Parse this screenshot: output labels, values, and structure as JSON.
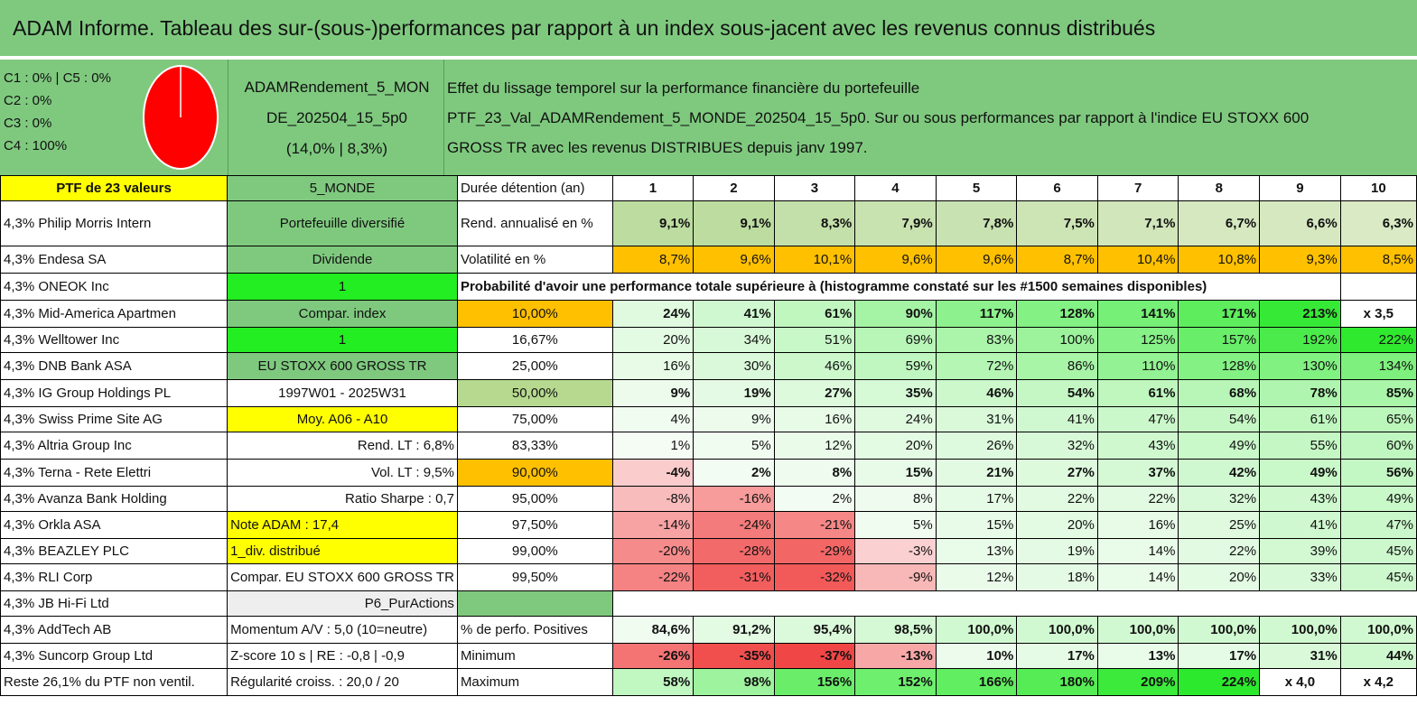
{
  "title": "ADAM Informe. Tableau des sur-(sous-)performances par rapport à un index sous-jacent avec les revenus connus distribués",
  "legend": [
    "C1 : 0% | C5 : 0%",
    "C2 : 0%",
    "C3 : 0%",
    "C4 : 100%"
  ],
  "pie_color": "#ff0000",
  "fund": [
    "ADAMRendement_5_MON",
    "DE_202504_15_5p0",
    "(14,0% | 8,3%)"
  ],
  "description": [
    "Effet du lissage temporel sur la performance financière du portefeuille",
    "PTF_23_Val_ADAMRendement_5_MONDE_202504_15_5p0. Sur ou sous performances par rapport à l'indice EU STOXX 600",
    "GROSS TR avec les revenus DISTRIBUES depuis janv 1997."
  ],
  "colors": {
    "green_header": "#7fc97f",
    "highlight_yellow": "#ffff00",
    "highlight_orange": "#ffc000",
    "bright_green": "#22ee22",
    "negative_red": "#f06060"
  },
  "rows": [
    {
      "c1": "PTF de 23 valeurs",
      "c2": "5_MONDE",
      "c3": "Durée détention (an)",
      "vals": [
        "1",
        "2",
        "3",
        "4",
        "5",
        "6",
        "7",
        "8",
        "9",
        "10"
      ]
    },
    {
      "c1": "4,3% Philip Morris Intern",
      "c2": "Portefeuille diversifié",
      "c3": "Rend. annualisé en %",
      "vals": [
        "9,1%",
        "9,1%",
        "8,3%",
        "7,9%",
        "7,8%",
        "7,5%",
        "7,1%",
        "6,7%",
        "6,6%",
        "6,3%"
      ]
    },
    {
      "c1": "4,3% Endesa SA",
      "c2": "Dividende",
      "c3": "Volatilité en %",
      "vals": [
        "8,7%",
        "9,6%",
        "10,1%",
        "9,6%",
        "9,6%",
        "8,7%",
        "10,4%",
        "10,8%",
        "9,3%",
        "8,5%"
      ]
    },
    {
      "c1": "4,3% ONEOK Inc",
      "c2": "1",
      "c3": "Probabilité d'avoir une performance totale supérieure à (histogramme constaté sur les #1500 semaines disponibles)",
      "vals": []
    },
    {
      "c1": "4,3% Mid-America Apartmen",
      "c2": "Compar. index",
      "c3": "10,00%",
      "vals": [
        "24%",
        "41%",
        "61%",
        "90%",
        "117%",
        "128%",
        "141%",
        "171%",
        "213%",
        "x 3,5"
      ]
    },
    {
      "c1": "4,3% Welltower Inc",
      "c2": "1",
      "c3": "16,67%",
      "vals": [
        "20%",
        "34%",
        "51%",
        "69%",
        "83%",
        "100%",
        "125%",
        "157%",
        "192%",
        "222%"
      ]
    },
    {
      "c1": "4,3% DNB Bank ASA",
      "c2": "EU STOXX 600 GROSS TR",
      "c3": "25,00%",
      "vals": [
        "16%",
        "30%",
        "46%",
        "59%",
        "72%",
        "86%",
        "110%",
        "128%",
        "130%",
        "134%"
      ]
    },
    {
      "c1": "4,3% IG Group Holdings PL",
      "c2": "1997W01 - 2025W31",
      "c3": "50,00%",
      "vals": [
        "9%",
        "19%",
        "27%",
        "35%",
        "46%",
        "54%",
        "61%",
        "68%",
        "78%",
        "85%"
      ]
    },
    {
      "c1": "4,3% Swiss Prime Site AG",
      "c2": "Moy. A06 - A10",
      "c3": "75,00%",
      "vals": [
        "4%",
        "9%",
        "16%",
        "24%",
        "31%",
        "41%",
        "47%",
        "54%",
        "61%",
        "65%"
      ]
    },
    {
      "c1": "4,3% Altria Group Inc",
      "c2": "Rend. LT : 6,8%",
      "c3": "83,33%",
      "vals": [
        "1%",
        "5%",
        "12%",
        "20%",
        "26%",
        "32%",
        "43%",
        "49%",
        "55%",
        "60%"
      ]
    },
    {
      "c1": "4,3% Terna - Rete Elettri",
      "c2": "Vol. LT : 9,5%",
      "c3": "90,00%",
      "vals": [
        "-4%",
        "2%",
        "8%",
        "15%",
        "21%",
        "27%",
        "37%",
        "42%",
        "49%",
        "56%"
      ]
    },
    {
      "c1": "4,3% Avanza Bank Holding",
      "c2": "Ratio Sharpe : 0,7",
      "c3": "95,00%",
      "vals": [
        "-8%",
        "-16%",
        "2%",
        "8%",
        "17%",
        "22%",
        "22%",
        "32%",
        "43%",
        "49%"
      ]
    },
    {
      "c1": "4,3% Orkla ASA",
      "c2": "Note ADAM : 17,4",
      "c3": "97,50%",
      "vals": [
        "-14%",
        "-24%",
        "-21%",
        "5%",
        "15%",
        "20%",
        "16%",
        "25%",
        "41%",
        "47%"
      ]
    },
    {
      "c1": "4,3% BEAZLEY PLC",
      "c2": "1_div. distribué",
      "c3": "99,00%",
      "vals": [
        "-20%",
        "-28%",
        "-29%",
        "-3%",
        "13%",
        "19%",
        "14%",
        "22%",
        "39%",
        "45%"
      ]
    },
    {
      "c1": "4,3% RLI Corp",
      "c2": "Compar. EU STOXX 600 GROSS TR",
      "c3": "99,50%",
      "vals": [
        "-22%",
        "-31%",
        "-32%",
        "-9%",
        "12%",
        "18%",
        "14%",
        "20%",
        "33%",
        "45%"
      ]
    },
    {
      "c1": "4,3% JB Hi-Fi Ltd",
      "c2": "P6_PurActions",
      "c3": "",
      "vals": []
    },
    {
      "c1": "4,3% AddTech AB",
      "c2": "Momentum A/V : 5,0 (10=neutre)",
      "c3": "% de perfo. Positives",
      "vals": [
        "84,6%",
        "91,2%",
        "95,4%",
        "98,5%",
        "100,0%",
        "100,0%",
        "100,0%",
        "100,0%",
        "100,0%",
        "100,0%"
      ]
    },
    {
      "c1": "4,3% Suncorp Group Ltd",
      "c2": "Z-score 10 s | RE : -0,8 | -0,9",
      "c3": "Minimum",
      "vals": [
        "-26%",
        "-35%",
        "-37%",
        "-13%",
        "10%",
        "17%",
        "13%",
        "17%",
        "31%",
        "44%"
      ]
    },
    {
      "c1": "Reste 26,1% du PTF non ventil.",
      "c2": "Régularité croiss. : 20,0 / 20",
      "c3": "Maximum",
      "vals": [
        "58%",
        "98%",
        "156%",
        "152%",
        "166%",
        "180%",
        "209%",
        "224%",
        "x 4,0",
        "x 4,2"
      ]
    }
  ]
}
